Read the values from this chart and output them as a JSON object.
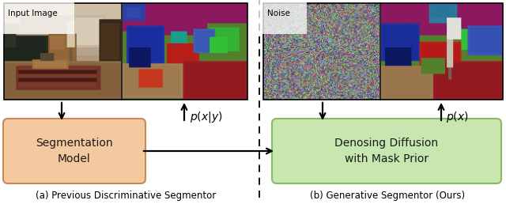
{
  "fig_width": 6.4,
  "fig_height": 2.58,
  "dpi": 100,
  "bg_color": "#ffffff",
  "box_left_color": "#f5c9a0",
  "box_left_edge": "#cc8855",
  "box_right_color": "#c8e6b0",
  "box_right_edge": "#88bb66",
  "box_left_text": "Segmentation\nModel",
  "box_right_text": "Denosing Diffusion\nwith Mask Prior",
  "label_left": "(a) Previous Discriminative Segmentor",
  "label_right": "(b) Generative Segmentor (Ours)",
  "label_input": "Input Image",
  "label_noise": "Noise",
  "prob_left": "$p(x|y)$",
  "prob_right": "$p(x)$"
}
